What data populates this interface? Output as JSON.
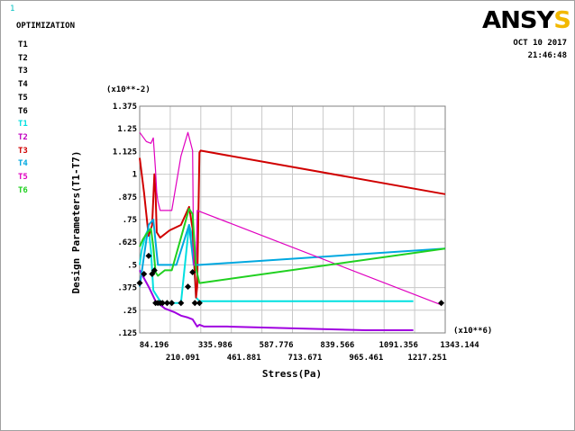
{
  "window_number": "1",
  "title": "OPTIMIZATION",
  "logo_text": "ANSYS",
  "date": "OCT 10 2017",
  "time": "21:46:48",
  "legend_top": [
    "T1",
    "T2",
    "T3",
    "T4",
    "T5",
    "T6"
  ],
  "legend_bottom": [
    {
      "label": "T1",
      "color": "#00e0e0"
    },
    {
      "label": "T2",
      "color": "#c000c0"
    },
    {
      "label": "T3",
      "color": "#d00000"
    },
    {
      "label": "T4",
      "color": "#00a8e0"
    },
    {
      "label": "T5",
      "color": "#e000c0"
    },
    {
      "label": "T6",
      "color": "#20d020"
    }
  ],
  "chart_data": {
    "type": "line",
    "ylabel": "Design Parameters(T1-T7)",
    "xlabel": "Stress(Pa)",
    "y_multiplier_label": "(x10**-2)",
    "x_multiplier_label": "(x10**6)",
    "ylim": [
      0.125,
      1.375
    ],
    "xlim": [
      21.301,
      1343.144
    ],
    "y_ticks": [
      "1.375",
      "1.25",
      "1.125",
      "1",
      ".875",
      ".75",
      ".625",
      ".5",
      ".375",
      ".25",
      ".125"
    ],
    "x_ticks_upper": [
      "84.196",
      "335.986",
      "587.776",
      "839.566",
      "1091.356",
      "1343.144"
    ],
    "x_ticks_lower": [
      "210.091",
      "461.881",
      "713.671",
      "965.461",
      "1217.251"
    ],
    "grid": true,
    "series": [
      {
        "name": "T1",
        "color": "#00e0e0",
        "x": [
          21.3,
          30,
          45,
          60,
          70,
          80,
          90,
          110,
          130,
          150,
          170,
          200,
          235,
          250,
          265,
          280,
          1205
        ],
        "y": [
          0.5,
          0.58,
          0.66,
          0.7,
          0.58,
          0.36,
          0.34,
          0.3,
          0.29,
          0.29,
          0.29,
          0.29,
          0.72,
          0.65,
          0.32,
          0.3,
          0.3
        ]
      },
      {
        "name": "T2",
        "color": "#a000e0",
        "x": [
          21.3,
          60,
          75,
          90,
          130,
          170,
          200,
          230,
          250,
          260,
          270,
          280,
          300,
          400,
          700,
          1000,
          1205
        ],
        "y": [
          0.47,
          0.38,
          0.34,
          0.3,
          0.26,
          0.24,
          0.22,
          0.21,
          0.2,
          0.18,
          0.16,
          0.17,
          0.16,
          0.16,
          0.15,
          0.14,
          0.14
        ]
      },
      {
        "name": "T3",
        "color": "#d00000",
        "x": [
          21.3,
          40,
          60,
          75,
          85,
          90,
          95,
          110,
          150,
          200,
          235,
          250,
          265,
          270,
          280,
          285,
          1343.144
        ],
        "y": [
          1.09,
          0.9,
          0.66,
          0.72,
          1.0,
          0.9,
          0.68,
          0.65,
          0.69,
          0.72,
          0.82,
          0.7,
          0.32,
          0.38,
          1.12,
          1.13,
          0.89
        ]
      },
      {
        "name": "T4",
        "color": "#00a8e0",
        "x": [
          21.3,
          40,
          60,
          80,
          100,
          110,
          120,
          130,
          180,
          235,
          255,
          280,
          1343.144
        ],
        "y": [
          0.38,
          0.55,
          0.72,
          0.75,
          0.5,
          0.5,
          0.5,
          0.5,
          0.5,
          0.72,
          0.5,
          0.5,
          0.59
        ]
      },
      {
        "name": "T5",
        "color": "#e000c0",
        "x": [
          21.3,
          50,
          70,
          80,
          90,
          95,
          100,
          110,
          120,
          160,
          200,
          230,
          250,
          255,
          265,
          270,
          1326
        ],
        "y": [
          1.23,
          1.18,
          1.17,
          1.2,
          1.02,
          0.9,
          0.85,
          0.8,
          0.8,
          0.8,
          1.1,
          1.23,
          1.13,
          0.5,
          0.5,
          0.8,
          0.28
        ]
      },
      {
        "name": "T6",
        "color": "#20d020",
        "x": [
          21.3,
          35,
          50,
          70,
          80,
          90,
          100,
          130,
          160,
          200,
          235,
          250,
          265,
          280,
          1343.144
        ],
        "y": [
          0.6,
          0.64,
          0.67,
          0.7,
          0.6,
          0.46,
          0.44,
          0.47,
          0.47,
          0.65,
          0.81,
          0.78,
          0.48,
          0.4,
          0.59
        ]
      }
    ],
    "markers": {
      "color": "#000000",
      "x": [
        21.3,
        40,
        60,
        75,
        85,
        90,
        100,
        110,
        120,
        140,
        160,
        200,
        230,
        250,
        260,
        280,
        1326
      ],
      "y": [
        0.4,
        0.45,
        0.55,
        0.45,
        0.47,
        0.29,
        0.29,
        0.29,
        0.29,
        0.29,
        0.29,
        0.29,
        0.38,
        0.46,
        0.29,
        0.29,
        0.29
      ]
    }
  }
}
